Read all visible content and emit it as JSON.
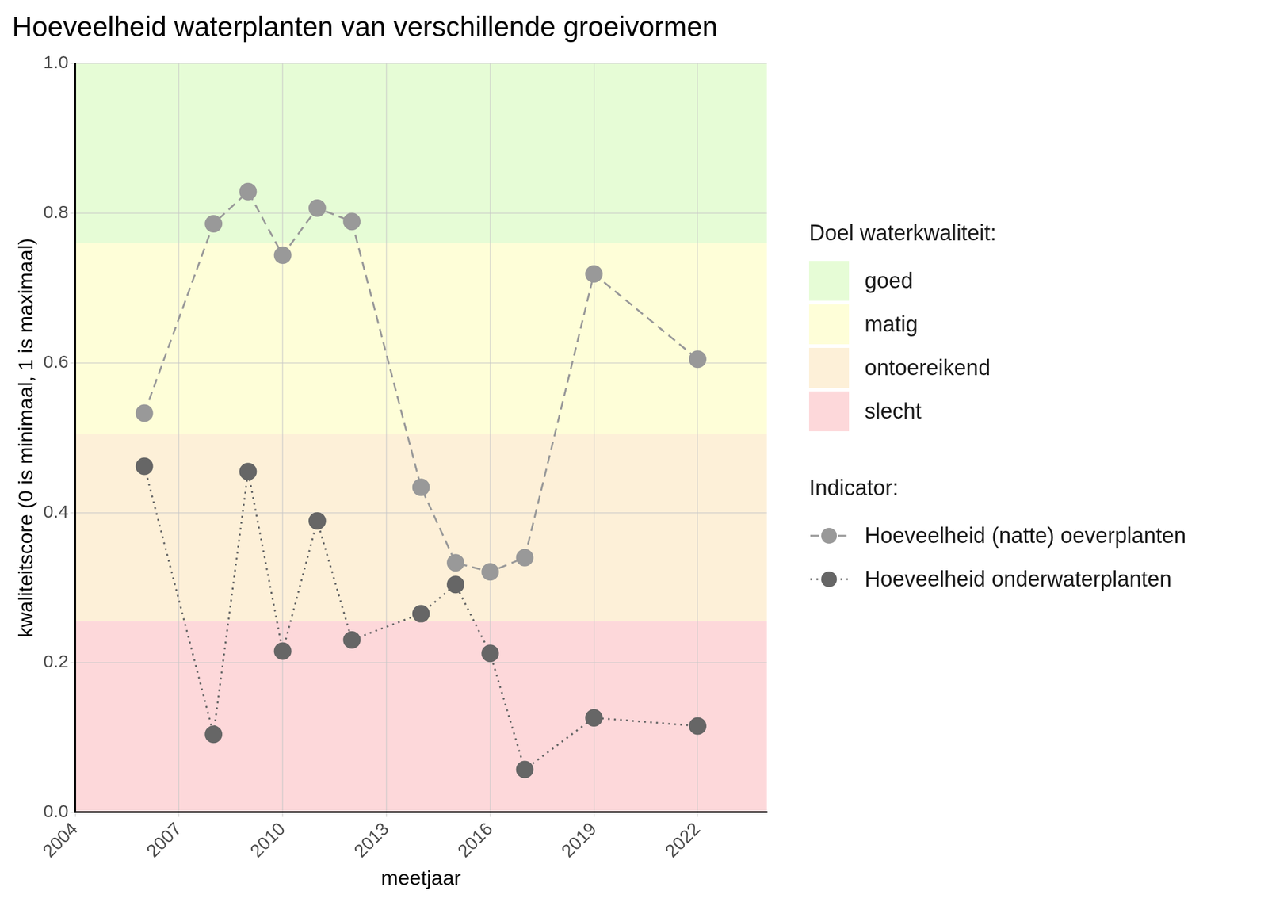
{
  "chart_data": {
    "type": "line",
    "title": "Hoeveelheid waterplanten van verschillende groeivormen",
    "x_label": "meetjaar",
    "y_label": "kwaliteitscore (0 is minimaal, 1 is maximaal)",
    "x": [
      2006,
      2008,
      2009,
      2010,
      2011,
      2012,
      2014,
      2015,
      2016,
      2017,
      2019,
      2022
    ],
    "series": [
      {
        "name": "Hoeveelheid (natte) oeverplanten",
        "color": "#999999",
        "marker": "circle",
        "line_style": "dashed",
        "values": [
          0.533,
          0.786,
          0.829,
          0.744,
          0.807,
          0.789,
          0.434,
          0.333,
          0.321,
          0.34,
          0.719,
          0.605
        ]
      },
      {
        "name": "Hoeveelheid onderwaterplanten",
        "color": "#666666",
        "marker": "circle",
        "line_style": "dotted",
        "values": [
          0.462,
          0.104,
          0.455,
          0.215,
          0.389,
          0.23,
          0.265,
          0.304,
          0.212,
          0.057,
          0.126,
          0.115
        ]
      }
    ],
    "xlim": [
      2004,
      2024
    ],
    "xticks": [
      2004,
      2007,
      2010,
      2013,
      2016,
      2019,
      2022
    ],
    "ylim": [
      0,
      1
    ],
    "yticks": [
      {
        "value": 0,
        "label": "0.0"
      },
      0.2,
      0.4,
      0.6,
      0.8,
      {
        "value": 1,
        "label": "1.0"
      }
    ],
    "grid": true,
    "legend": "right",
    "bands_title": "Doel waterkwaliteit:",
    "legend_title": "Indicator:",
    "bands": [
      {
        "name": "goed",
        "color": "#e6fcd6",
        "from": 0.76,
        "to": 1
      },
      {
        "name": "matig",
        "color": "#fefed8",
        "from": 0.505,
        "to": 0.76
      },
      {
        "name": "ontoereikend",
        "color": "#fdf0d8",
        "from": 0.255,
        "to": 0.505
      },
      {
        "name": "slecht",
        "color": "#fdd8da",
        "from": 0,
        "to": 0.255
      }
    ]
  }
}
